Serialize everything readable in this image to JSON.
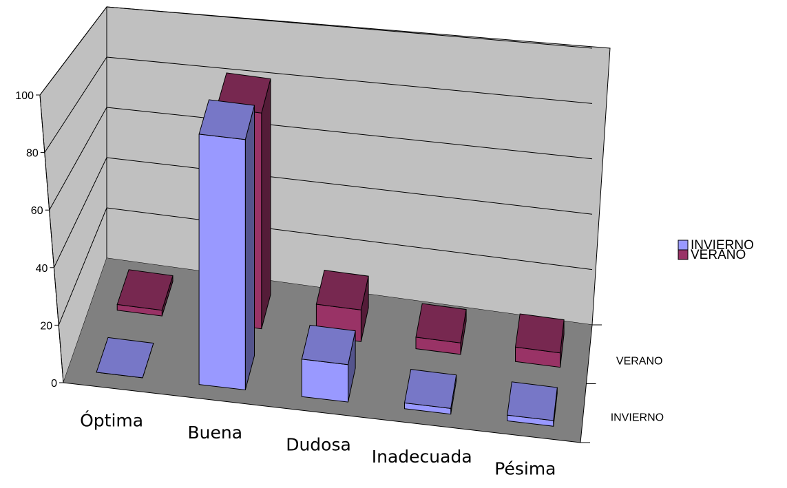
{
  "chart_data": {
    "type": "bar",
    "subtype": "3d-clustered-column",
    "title": "",
    "xlabel": "",
    "ylabel": "",
    "ylim": [
      0,
      100
    ],
    "y_ticks": [
      "0",
      "20",
      "40",
      "60",
      "80",
      "100"
    ],
    "categories": [
      "Óptima",
      "Buena",
      "Dudosa",
      "Inadecuada",
      "Pésima"
    ],
    "depth_axis_labels": [
      "VERANO",
      "INVIERNO"
    ],
    "grid": true,
    "legend_position": "right",
    "series": [
      {
        "name": "INVIERNO",
        "color": "#9999ff",
        "values": [
          0,
          87,
          13,
          2,
          2
        ]
      },
      {
        "name": "VERANO",
        "color": "#993366",
        "values": [
          2,
          75,
          11,
          4,
          5
        ]
      }
    ],
    "colors": {
      "back_wall": "#c0c0c0",
      "floor": "#808080",
      "gridline": "#000000"
    }
  }
}
